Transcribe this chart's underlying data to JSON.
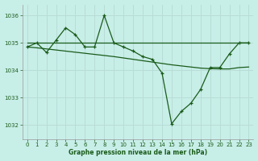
{
  "background_color": "#c8eee8",
  "grid_color": "#b8ddd6",
  "line_color": "#1a5c1a",
  "title": "Graphe pression niveau de la mer (hPa)",
  "xlim": [
    -0.5,
    23.5
  ],
  "ylim": [
    1031.5,
    1036.4
  ],
  "yticks": [
    1032,
    1033,
    1034,
    1035,
    1036
  ],
  "xticks": [
    0,
    1,
    2,
    3,
    4,
    5,
    6,
    7,
    8,
    9,
    10,
    11,
    12,
    13,
    14,
    15,
    16,
    17,
    18,
    19,
    20,
    21,
    22,
    23
  ],
  "series_flat": [
    1035.0,
    1035.0,
    1035.0,
    1035.0,
    1035.0,
    1035.0,
    1035.0,
    1035.0,
    1035.0,
    1035.0,
    1035.0,
    1035.0,
    1035.0,
    1035.0,
    1035.0,
    1035.0,
    1035.0,
    1035.0,
    1035.0,
    1035.0,
    1035.0,
    1035.0,
    1035.0,
    1035.0
  ],
  "series_trend": [
    1034.85,
    1034.82,
    1034.78,
    1034.74,
    1034.7,
    1034.66,
    1034.62,
    1034.58,
    1034.54,
    1034.5,
    1034.45,
    1034.4,
    1034.35,
    1034.3,
    1034.25,
    1034.2,
    1034.16,
    1034.12,
    1034.08,
    1034.06,
    1034.05,
    1034.05,
    1034.1,
    1034.12
  ],
  "series_data": [
    1034.85,
    1035.0,
    1034.65,
    1035.1,
    1035.55,
    1035.3,
    1034.85,
    1034.85,
    1036.0,
    1035.0,
    1034.85,
    1034.7,
    1034.5,
    1034.4,
    1033.9,
    1032.05,
    1032.5,
    1032.8,
    1033.3,
    1034.1,
    1034.1,
    1034.6,
    1035.0,
    1035.0
  ]
}
